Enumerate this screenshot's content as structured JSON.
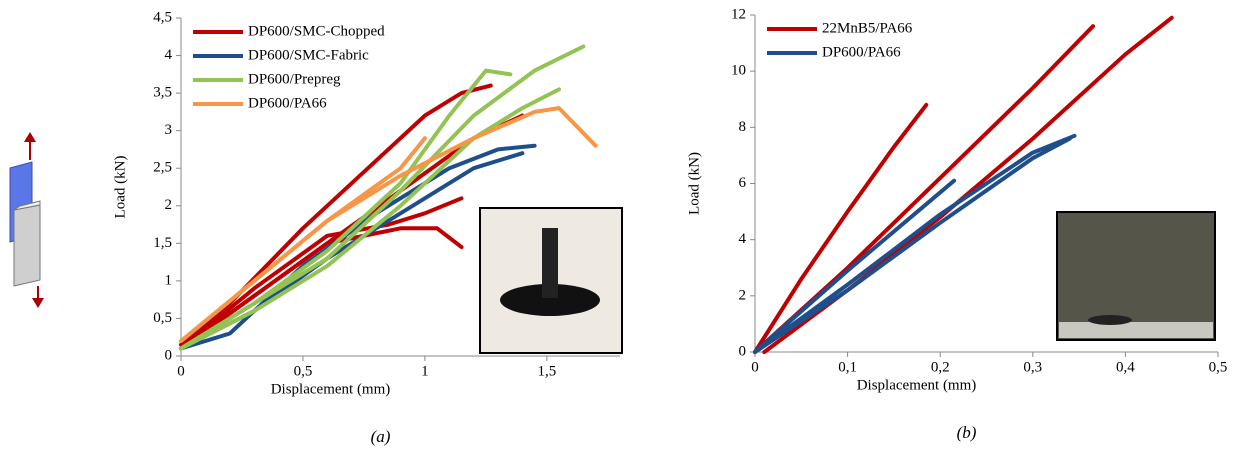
{
  "chart_data": [
    {
      "type": "line",
      "caption": "(a)",
      "x_label": "Displacement (mm)",
      "y_label": "Load (kN)",
      "legend": "upper left",
      "xlim": [
        0,
        1.8
      ],
      "ylim": [
        0,
        4.5
      ],
      "xticks": [
        0,
        {
          "value": 0.5,
          "label": "0,5"
        },
        1,
        {
          "value": 1.5,
          "label": "1,5"
        }
      ],
      "yticks": [
        0,
        {
          "value": 0.5,
          "label": "0,5"
        },
        1,
        {
          "value": 1.5,
          "label": "1,5"
        },
        2,
        {
          "value": 2.5,
          "label": "2,5"
        },
        3,
        {
          "value": 3.5,
          "label": "3,5"
        },
        4,
        {
          "value": 4.5,
          "label": "4,5"
        }
      ],
      "series": [
        {
          "name": "DP600/SMC-Chopped",
          "color": "#c00000",
          "curves": [
            {
              "x": [
                0,
                0.2,
                0.5,
                0.8,
                1.0,
                1.15,
                1.27
              ],
              "values": [
                0.15,
                0.7,
                1.7,
                2.6,
                3.2,
                3.5,
                3.6
              ]
            },
            {
              "x": [
                0,
                0.3,
                0.6,
                0.9,
                1.2,
                1.4
              ],
              "values": [
                0.1,
                0.8,
                1.5,
                2.2,
                2.9,
                3.2
              ]
            },
            {
              "x": [
                0,
                0.3,
                0.6,
                0.85,
                1.0,
                1.15
              ],
              "values": [
                0.1,
                0.9,
                1.6,
                1.75,
                1.9,
                2.1
              ]
            },
            {
              "x": [
                0,
                0.3,
                0.6,
                0.9,
                1.05,
                1.15
              ],
              "values": [
                0.1,
                0.8,
                1.5,
                1.7,
                1.7,
                1.45
              ]
            }
          ]
        },
        {
          "name": "DP600/SMC-Fabric",
          "color": "#1f4e8c",
          "curves": [
            {
              "x": [
                0,
                0.2,
                0.5,
                0.8,
                1.1,
                1.3,
                1.45
              ],
              "values": [
                0.1,
                0.3,
                1.2,
                1.9,
                2.5,
                2.75,
                2.8
              ]
            },
            {
              "x": [
                0,
                0.3,
                0.6,
                0.9,
                1.2,
                1.4
              ],
              "values": [
                0.1,
                0.6,
                1.3,
                1.9,
                2.5,
                2.7
              ]
            }
          ]
        },
        {
          "name": "DP600/Prepreg",
          "color": "#92c353",
          "curves": [
            {
              "x": [
                0,
                0.3,
                0.6,
                0.9,
                1.2,
                1.45,
                1.65
              ],
              "values": [
                0.1,
                0.7,
                1.3,
                2.2,
                3.2,
                3.8,
                4.12
              ]
            },
            {
              "x": [
                0,
                0.3,
                0.6,
                0.9,
                1.2,
                1.4,
                1.55
              ],
              "values": [
                0.1,
                0.6,
                1.2,
                2.0,
                2.9,
                3.3,
                3.55
              ]
            },
            {
              "x": [
                0,
                0.3,
                0.6,
                0.9,
                1.1,
                1.25,
                1.35
              ],
              "values": [
                0.1,
                0.7,
                1.4,
                2.3,
                3.2,
                3.8,
                3.75
              ]
            }
          ]
        },
        {
          "name": "DP600/PA66",
          "color": "#f79646",
          "curves": [
            {
              "x": [
                0,
                0.3,
                0.6,
                0.9,
                1.2,
                1.45,
                1.55,
                1.7
              ],
              "values": [
                0.2,
                1.0,
                1.8,
                2.4,
                2.9,
                3.25,
                3.3,
                2.8
              ]
            },
            {
              "x": [
                0,
                0.3,
                0.6,
                0.9,
                1.0
              ],
              "values": [
                0.2,
                1.0,
                1.8,
                2.5,
                2.9
              ]
            }
          ]
        }
      ]
    },
    {
      "type": "line",
      "caption": "(b)",
      "x_label": "Displacement (mm)",
      "y_label": "Load (kN)",
      "legend": "upper left",
      "xlim": [
        0,
        0.5
      ],
      "ylim": [
        0,
        12
      ],
      "xticks": [
        0,
        {
          "value": 0.1,
          "label": "0,1"
        },
        {
          "value": 0.2,
          "label": "0,2"
        },
        {
          "value": 0.3,
          "label": "0,3"
        },
        {
          "value": 0.4,
          "label": "0,4"
        },
        {
          "value": 0.5,
          "label": "0,5"
        }
      ],
      "yticks": [
        0,
        2,
        4,
        6,
        8,
        10,
        12
      ],
      "series": [
        {
          "name": "22MnB5/PA66",
          "color": "#c00000",
          "curves": [
            {
              "x": [
                0,
                0.05,
                0.1,
                0.15,
                0.185
              ],
              "values": [
                0,
                2.6,
                5.0,
                7.3,
                8.8
              ]
            },
            {
              "x": [
                0,
                0.1,
                0.2,
                0.3,
                0.365
              ],
              "values": [
                0,
                3.0,
                6.2,
                9.4,
                11.6
              ]
            },
            {
              "x": [
                0.01,
                0.1,
                0.2,
                0.3,
                0.4,
                0.45
              ],
              "values": [
                0,
                2.2,
                4.8,
                7.6,
                10.6,
                11.9
              ]
            }
          ]
        },
        {
          "name": "DP600/PA66",
          "color": "#1f4e8c",
          "curves": [
            {
              "x": [
                0,
                0.1,
                0.2,
                0.3,
                0.345
              ],
              "values": [
                0,
                2.4,
                4.9,
                7.1,
                7.7
              ]
            },
            {
              "x": [
                0,
                0.1,
                0.2,
                0.3,
                0.34
              ],
              "values": [
                0,
                2.2,
                4.6,
                6.9,
                7.6
              ]
            },
            {
              "x": [
                0,
                0.1,
                0.215
              ],
              "values": [
                0,
                2.9,
                6.1
              ]
            }
          ]
        }
      ]
    }
  ]
}
